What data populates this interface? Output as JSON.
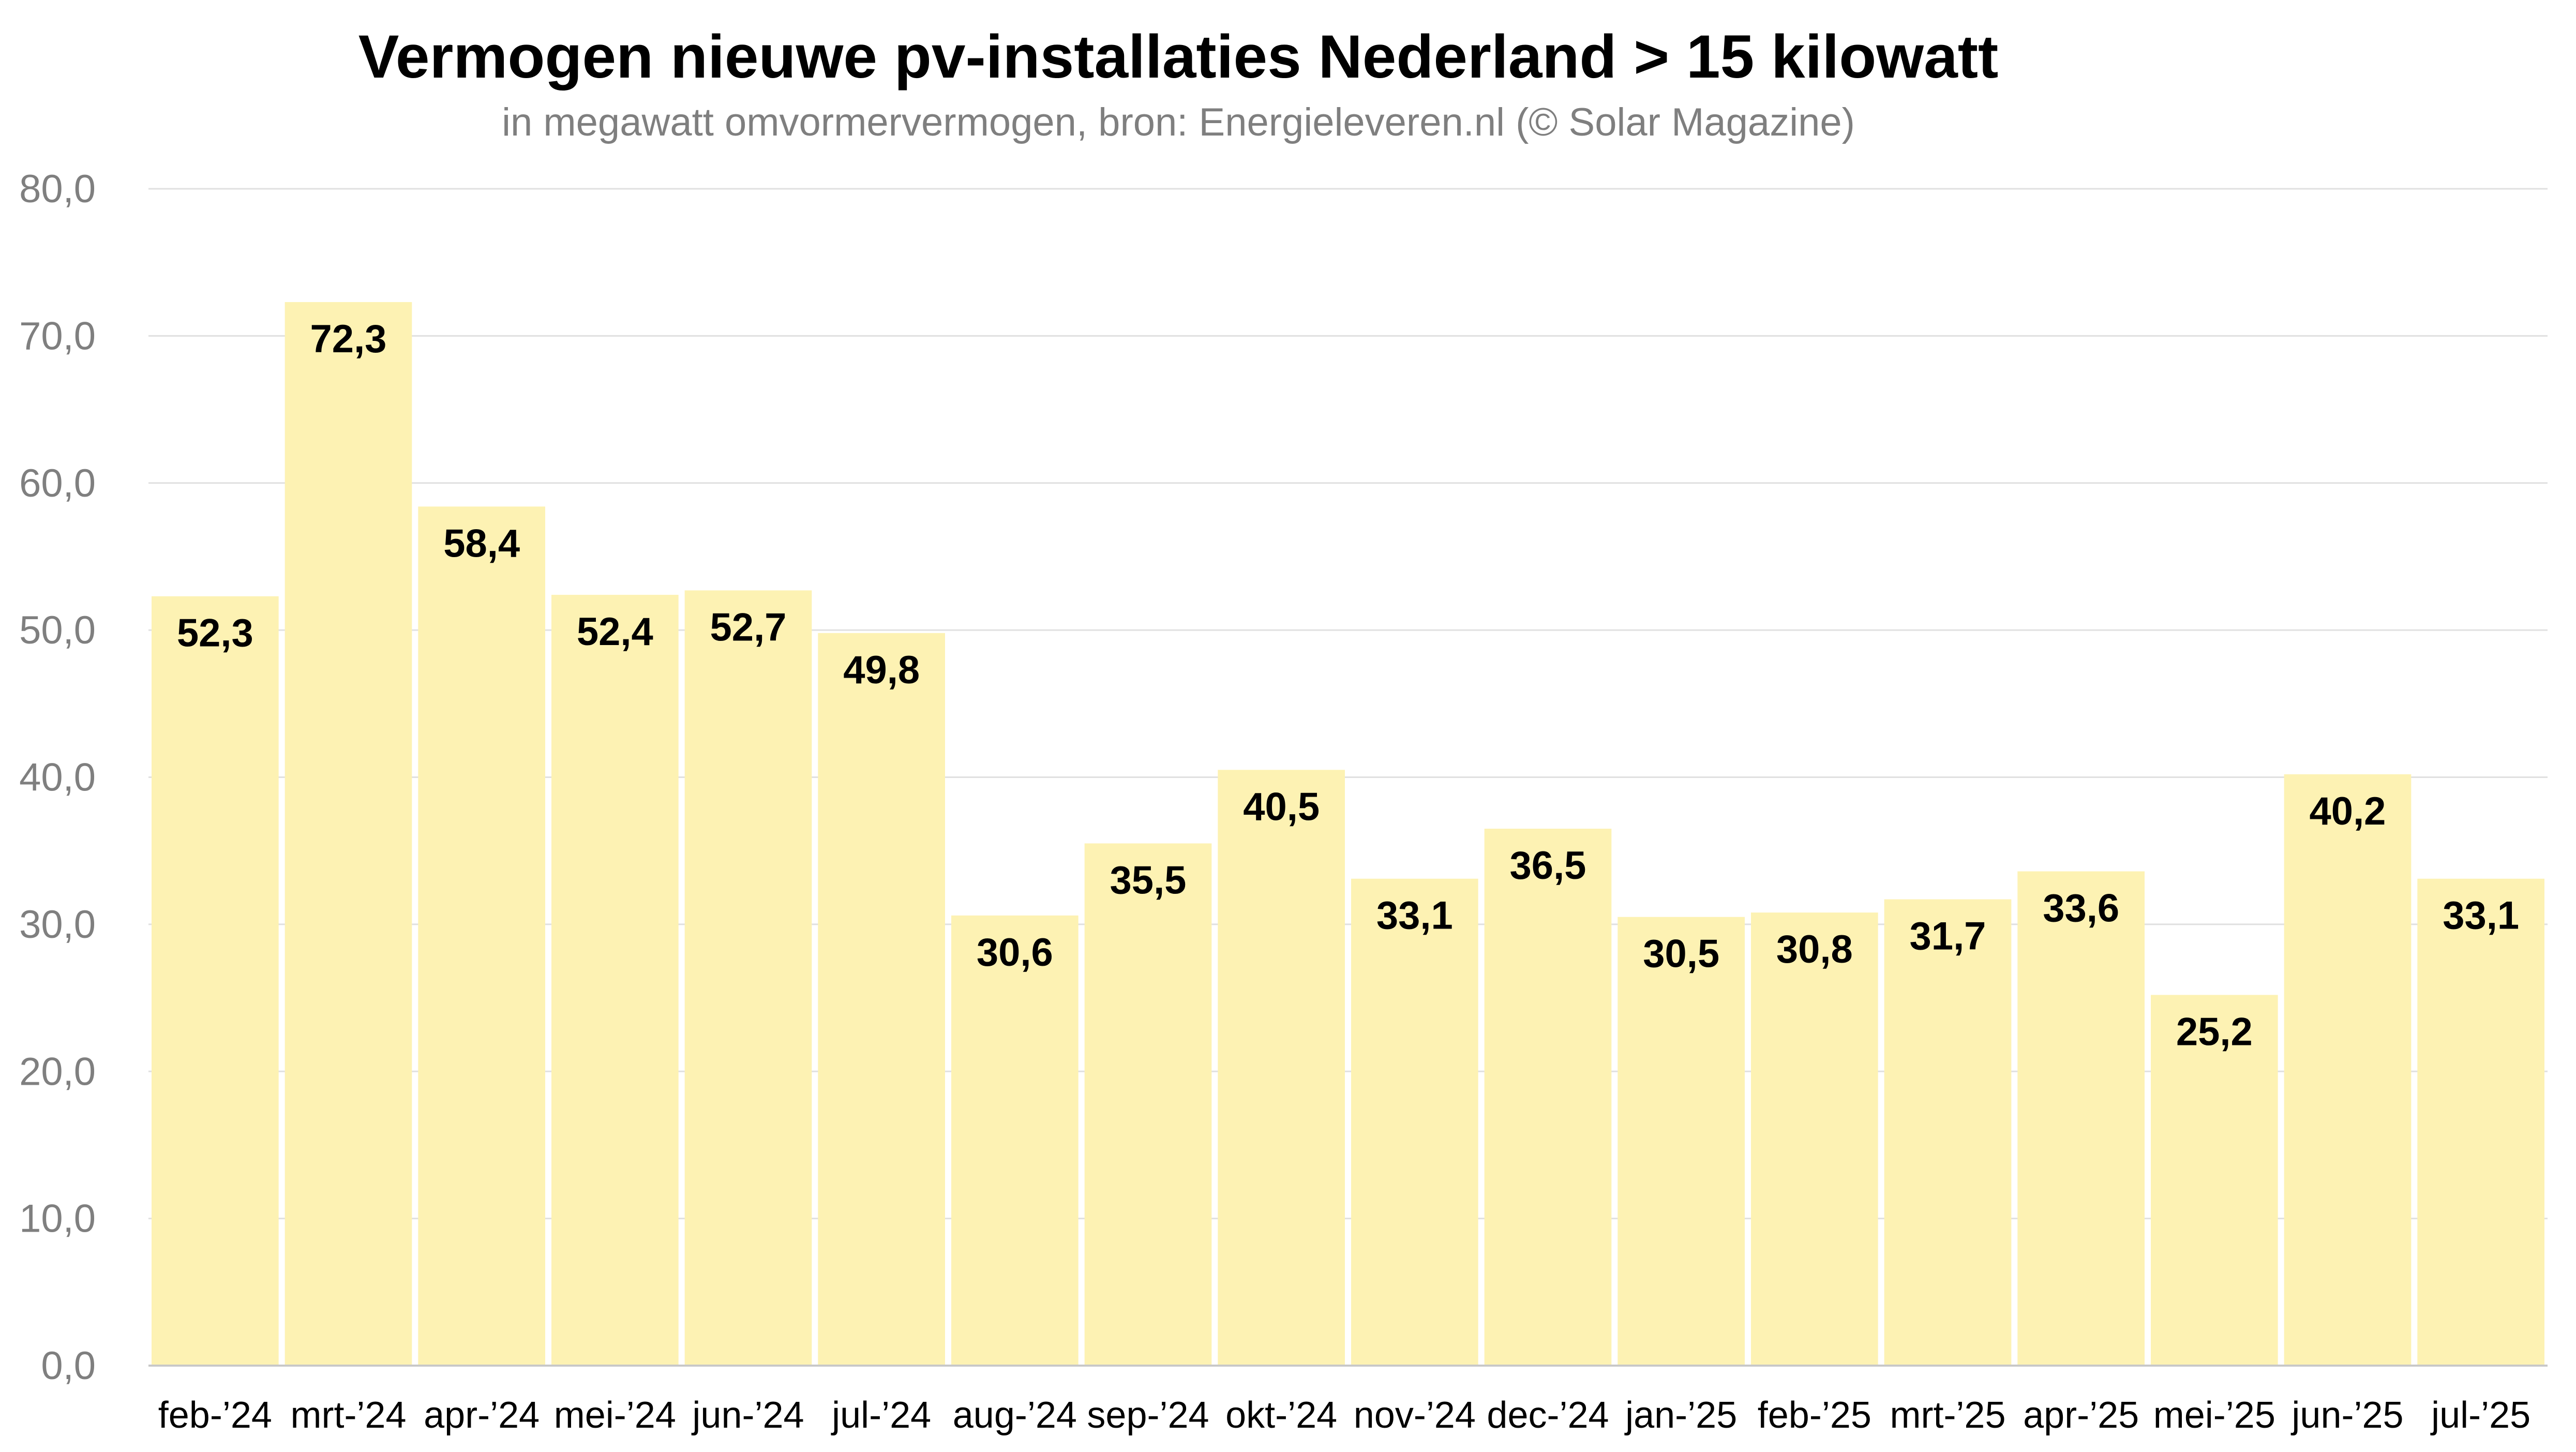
{
  "chart_data": {
    "type": "bar",
    "title": "Vermogen nieuwe pv-installaties Nederland > 15 kilowatt",
    "subtitle": "in megawatt omvormervermogen, bron: Energieleveren.nl (© Solar Magazine)",
    "xlabel": "",
    "ylabel": "",
    "ylim": [
      0,
      80
    ],
    "yticks": [
      "0,0",
      "10,0",
      "20,0",
      "30,0",
      "40,0",
      "50,0",
      "60,0",
      "70,0",
      "80,0"
    ],
    "grid": true,
    "legend": "none",
    "categories": [
      "feb-'24",
      "mrt-'24",
      "apr-'24",
      "mei-'24",
      "jun-'24",
      "jul-'24",
      "aug-'24",
      "sep-'24",
      "okt-'24",
      "nov-'24",
      "dec-'24",
      "jan-'25",
      "feb-'25",
      "mrt-'25",
      "apr-'25",
      "mei-'25",
      "jun-'25",
      "jul-'25"
    ],
    "values": [
      52.3,
      72.3,
      58.4,
      52.4,
      52.7,
      49.8,
      30.6,
      35.5,
      40.5,
      33.1,
      36.5,
      30.5,
      30.8,
      31.7,
      33.6,
      25.2,
      40.2,
      33.1
    ],
    "data_labels": [
      "52,3",
      "72,3",
      "58,4",
      "52,4",
      "52,7",
      "49,8",
      "30,6",
      "35,5",
      "40,5",
      "33,1",
      "36,5",
      "30,5",
      "30,8",
      "31,7",
      "33,6",
      "25,2",
      "40,2",
      "33,1"
    ],
    "colors": {
      "bar": "#fdf2b3",
      "grid": "#e0e0e0",
      "axis": "#c8c8c8",
      "tick_text": "#7f7f7f"
    }
  }
}
